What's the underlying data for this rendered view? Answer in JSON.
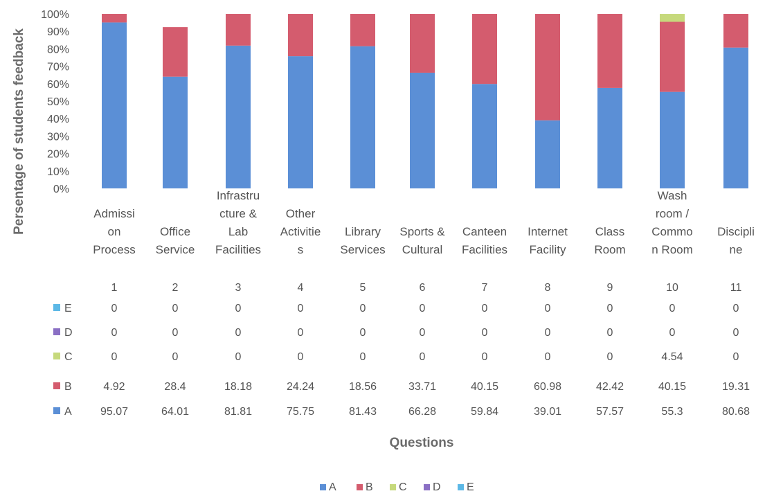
{
  "chart_data": {
    "type": "bar",
    "stacked": true,
    "xlabel": "Questions",
    "ylabel": "Persentage of students feedback",
    "ylim": [
      0,
      100
    ],
    "y_ticks": [
      "0%",
      "10%",
      "20%",
      "30%",
      "40%",
      "50%",
      "60%",
      "70%",
      "80%",
      "90%",
      "100%"
    ],
    "categories": [
      "Admission Process",
      "Office Service",
      "Infrastructure & Lab Facilities",
      "Other Activities",
      "Library Services",
      "Sports & Cultural",
      "Canteen Facilities",
      "Internet Facility",
      "Class Room",
      "Wash room / Common Room",
      "Discipline"
    ],
    "category_label_lines": [
      [
        "Admissi",
        "on",
        "Process"
      ],
      [
        "Office",
        "Service"
      ],
      [
        "Infrastru",
        "cture &",
        "Lab",
        "Facilities"
      ],
      [
        "Other",
        "Activitie",
        "s"
      ],
      [
        "Library",
        "Services"
      ],
      [
        "Sports &",
        "Cultural"
      ],
      [
        "Canteen",
        "Facilities"
      ],
      [
        "Internet",
        "Facility"
      ],
      [
        "Class",
        "Room"
      ],
      [
        "Wash",
        "room /",
        "Commo",
        "n Room"
      ],
      [
        "Discipli",
        "ne"
      ]
    ],
    "question_numbers": [
      "1",
      "2",
      "3",
      "4",
      "5",
      "6",
      "7",
      "8",
      "9",
      "10",
      "11"
    ],
    "series": [
      {
        "name": "A",
        "color": "#5b8fd6",
        "values": [
          95.07,
          64.01,
          81.81,
          75.75,
          81.43,
          66.28,
          59.84,
          39.01,
          57.57,
          55.3,
          80.68
        ]
      },
      {
        "name": "B",
        "color": "#d45c6e",
        "values": [
          4.92,
          28.4,
          18.18,
          24.24,
          18.56,
          33.71,
          40.15,
          60.98,
          42.42,
          40.15,
          19.31
        ]
      },
      {
        "name": "C",
        "color": "#c6d97c",
        "values": [
          0,
          0,
          0,
          0,
          0,
          0,
          0,
          0,
          0,
          4.54,
          0
        ]
      },
      {
        "name": "D",
        "color": "#8a6fc4",
        "values": [
          0,
          0,
          0,
          0,
          0,
          0,
          0,
          0,
          0,
          0,
          0
        ]
      },
      {
        "name": "E",
        "color": "#5cb8e6",
        "values": [
          0,
          0,
          0,
          0,
          0,
          0,
          0,
          0,
          0,
          0,
          0
        ]
      }
    ],
    "table_rows": [
      {
        "series": "E",
        "values": [
          "0",
          "0",
          "0",
          "0",
          "0",
          "0",
          "0",
          "0",
          "0",
          "0",
          "0"
        ]
      },
      {
        "series": "D",
        "values": [
          "0",
          "0",
          "0",
          "0",
          "0",
          "0",
          "0",
          "0",
          "0",
          "0",
          "0"
        ]
      },
      {
        "series": "C",
        "values": [
          "0",
          "0",
          "0",
          "0",
          "0",
          "0",
          "0",
          "0",
          "0",
          "4.54",
          "0"
        ]
      },
      {
        "series": "B",
        "values": [
          "4.92",
          "28.4",
          "18.18",
          "24.24",
          "18.56",
          "33.71",
          "40.15",
          "60.98",
          "42.42",
          "40.15",
          "19.31"
        ]
      },
      {
        "series": "A",
        "values": [
          "95.07",
          "64.01",
          "81.81",
          "75.75",
          "81.43",
          "66.28",
          "59.84",
          "39.01",
          "57.57",
          "55.3",
          "80.68"
        ]
      }
    ],
    "legend": [
      "A",
      "B",
      "C",
      "D",
      "E"
    ],
    "legend_position": "bottom",
    "grid": false
  }
}
